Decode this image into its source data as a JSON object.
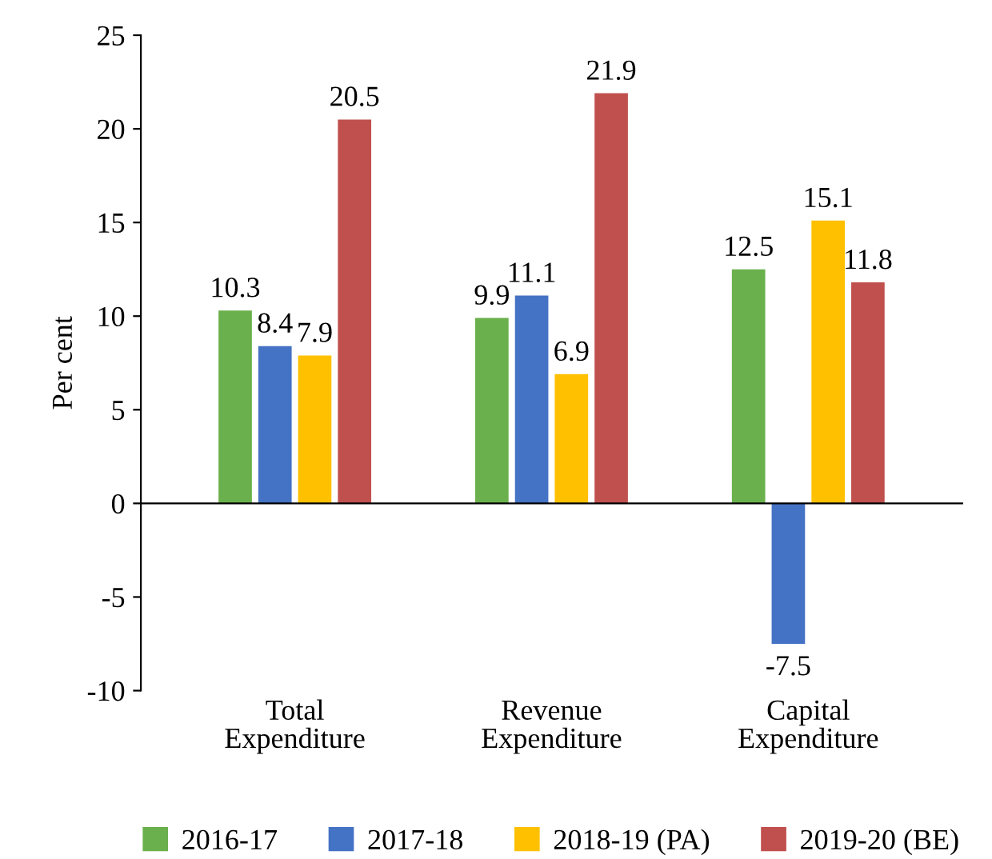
{
  "chart_data": {
    "type": "bar",
    "ylabel": "Per cent",
    "categories": [
      "Total\nExpenditure",
      "Revenue\nExpenditure",
      "Capital\nExpenditure"
    ],
    "series": [
      {
        "name": "2016-17",
        "color": "#6ab04c",
        "values": [
          10.3,
          9.9,
          12.5
        ]
      },
      {
        "name": "2017-18",
        "color": "#4472c4",
        "values": [
          8.4,
          11.1,
          -7.5
        ]
      },
      {
        "name": "2018-19 (PA)",
        "color": "#ffc000",
        "values": [
          7.9,
          6.9,
          15.1
        ]
      },
      {
        "name": "2019-20 (BE)",
        "color": "#c0504d",
        "values": [
          20.5,
          21.9,
          11.8
        ]
      }
    ],
    "ylim": [
      -10,
      25
    ],
    "yticks": [
      -10,
      -5,
      0,
      5,
      10,
      15,
      20,
      25
    ],
    "data_labels": true,
    "legend": "bottom"
  }
}
